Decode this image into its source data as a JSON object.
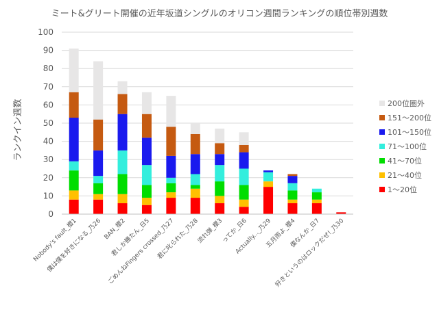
{
  "chart_data": {
    "type": "bar",
    "stacked": true,
    "title": "ミート&グリート開催の近年坂道シングルのオリコン週間ランキングの順位帯別週数",
    "xlabel": "",
    "ylabel": "ランクイン週数",
    "ylim": [
      0,
      100
    ],
    "yticks": [
      0,
      10,
      20,
      30,
      40,
      50,
      60,
      70,
      80,
      90,
      100
    ],
    "grid": true,
    "legend_position": "right",
    "categories": [
      "Nobody's fault_櫻1",
      "僕は僕を好きになる_乃26",
      "BAN_櫻2",
      "君しか勝たん_日5",
      "ごめんねFingers crossed_乃27",
      "君に叱られた_乃28",
      "流れ弾_櫻3",
      "ってか_日6",
      "Actually..._乃29",
      "五月雨よ_櫻4",
      "僕なんか_日7",
      "好きというのはロックだぜ!_乃30"
    ],
    "series": [
      {
        "name": "1〜20位",
        "color": "#ff0000",
        "values": [
          8,
          8,
          6,
          5,
          9,
          9,
          6,
          4,
          15,
          6,
          6,
          1
        ]
      },
      {
        "name": "21〜40位",
        "color": "#ffc000",
        "values": [
          5,
          3,
          5,
          4,
          3,
          5,
          4,
          4,
          3,
          2,
          2,
          0
        ]
      },
      {
        "name": "41〜70位",
        "color": "#00dd00",
        "values": [
          11,
          6,
          11,
          7,
          5,
          2,
          8,
          8,
          0,
          5,
          4,
          0
        ]
      },
      {
        "name": "71〜100位",
        "color": "#33eedd",
        "values": [
          5,
          4,
          13,
          11,
          3,
          6,
          9,
          9,
          5,
          4,
          2,
          0
        ]
      },
      {
        "name": "101〜150位",
        "color": "#1a1aee",
        "values": [
          24,
          14,
          20,
          15,
          12,
          11,
          6,
          9,
          1,
          4,
          0,
          0
        ]
      },
      {
        "name": "151〜200位",
        "color": "#c55a11",
        "values": [
          14,
          17,
          11,
          13,
          16,
          11,
          6,
          4,
          0,
          1,
          0,
          0
        ]
      },
      {
        "name": "200位圏外",
        "color": "#e7e6e6",
        "values": [
          24,
          32,
          7,
          12,
          17,
          6,
          8,
          7,
          0,
          0,
          0,
          0
        ]
      }
    ]
  }
}
